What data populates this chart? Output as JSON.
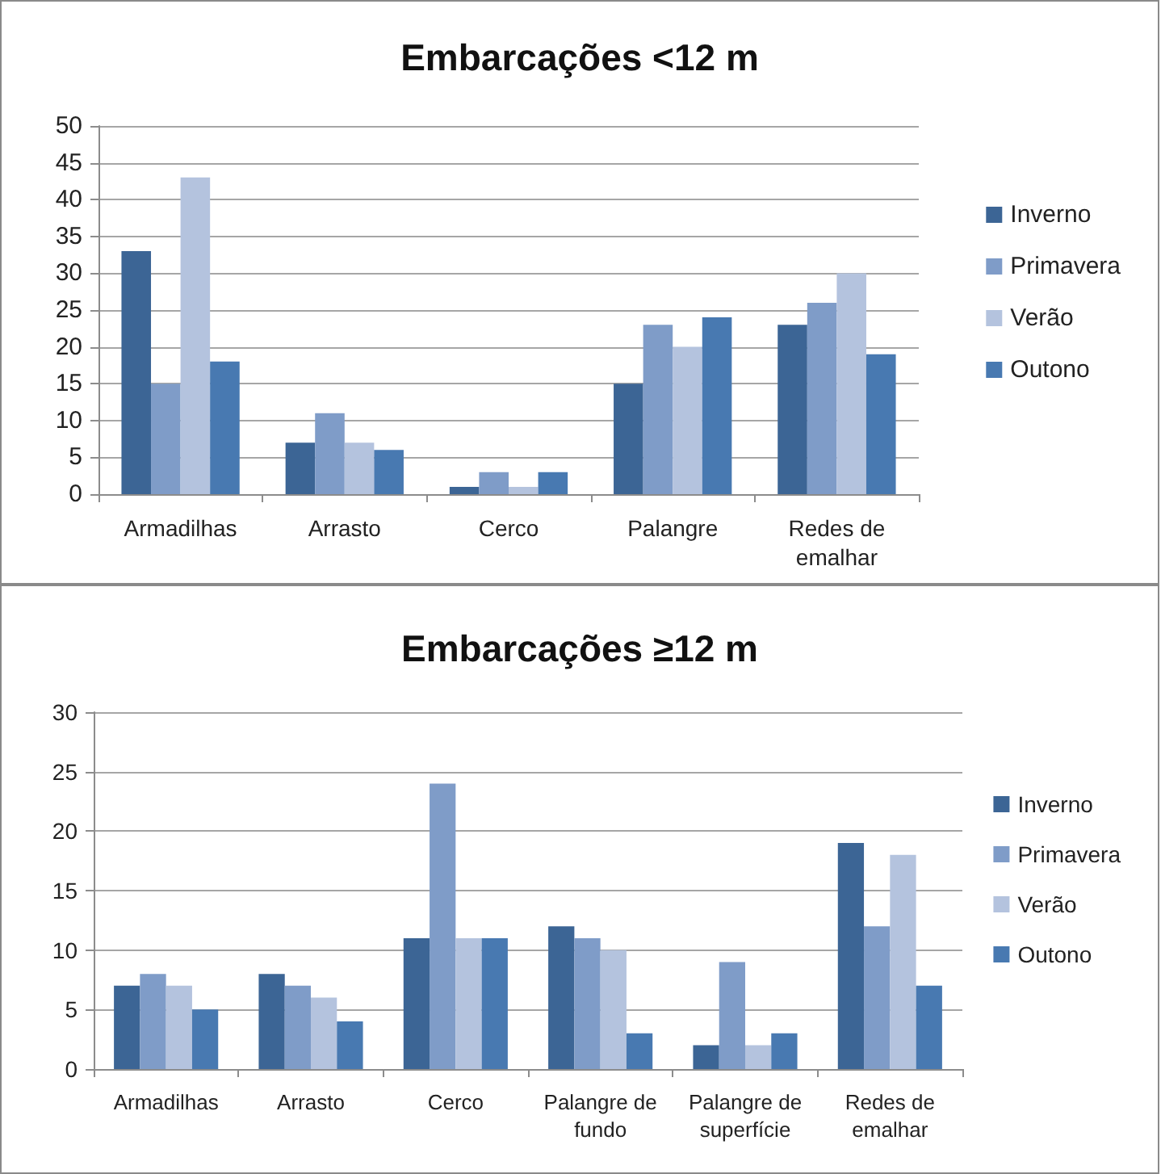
{
  "chart_data": [
    {
      "type": "bar",
      "title": "Embarcações <12 m",
      "categories": [
        "Armadilhas",
        "Arrasto",
        "Cerco",
        "Palangre",
        "Redes de emalhar"
      ],
      "series": [
        {
          "name": "Inverno",
          "color": "#3c6595",
          "values": [
            33,
            7,
            1,
            15,
            23
          ]
        },
        {
          "name": "Primavera",
          "color": "#7f9cc8",
          "values": [
            15,
            11,
            3,
            23,
            26
          ]
        },
        {
          "name": "Verão",
          "color": "#b4c3de",
          "values": [
            43,
            7,
            1,
            20,
            30
          ]
        },
        {
          "name": "Outono",
          "color": "#4879b1",
          "values": [
            18,
            6,
            3,
            24,
            19
          ]
        }
      ],
      "ylim": [
        0,
        50
      ],
      "yticks": [
        0,
        5,
        10,
        15,
        20,
        25,
        30,
        35,
        40,
        45,
        50
      ],
      "grid": "y",
      "legend": "right"
    },
    {
      "type": "bar",
      "title": "Embarcações ≥12 m",
      "categories": [
        "Armadilhas",
        "Arrasto",
        "Cerco",
        "Palangre de fundo",
        "Palangre de superfície",
        "Redes de emalhar"
      ],
      "series": [
        {
          "name": "Inverno",
          "color": "#3c6595",
          "values": [
            7,
            8,
            11,
            12,
            2,
            19
          ]
        },
        {
          "name": "Primavera",
          "color": "#7f9cc8",
          "values": [
            8,
            7,
            24,
            11,
            9,
            12
          ]
        },
        {
          "name": "Verão",
          "color": "#b4c3de",
          "values": [
            7,
            6,
            11,
            10,
            2,
            18
          ]
        },
        {
          "name": "Outono",
          "color": "#4879b1",
          "values": [
            5,
            4,
            11,
            3,
            3,
            7
          ]
        }
      ],
      "ylim": [
        0,
        30
      ],
      "yticks": [
        0,
        5,
        10,
        15,
        20,
        25,
        30
      ],
      "grid": "y",
      "legend": "right"
    }
  ]
}
